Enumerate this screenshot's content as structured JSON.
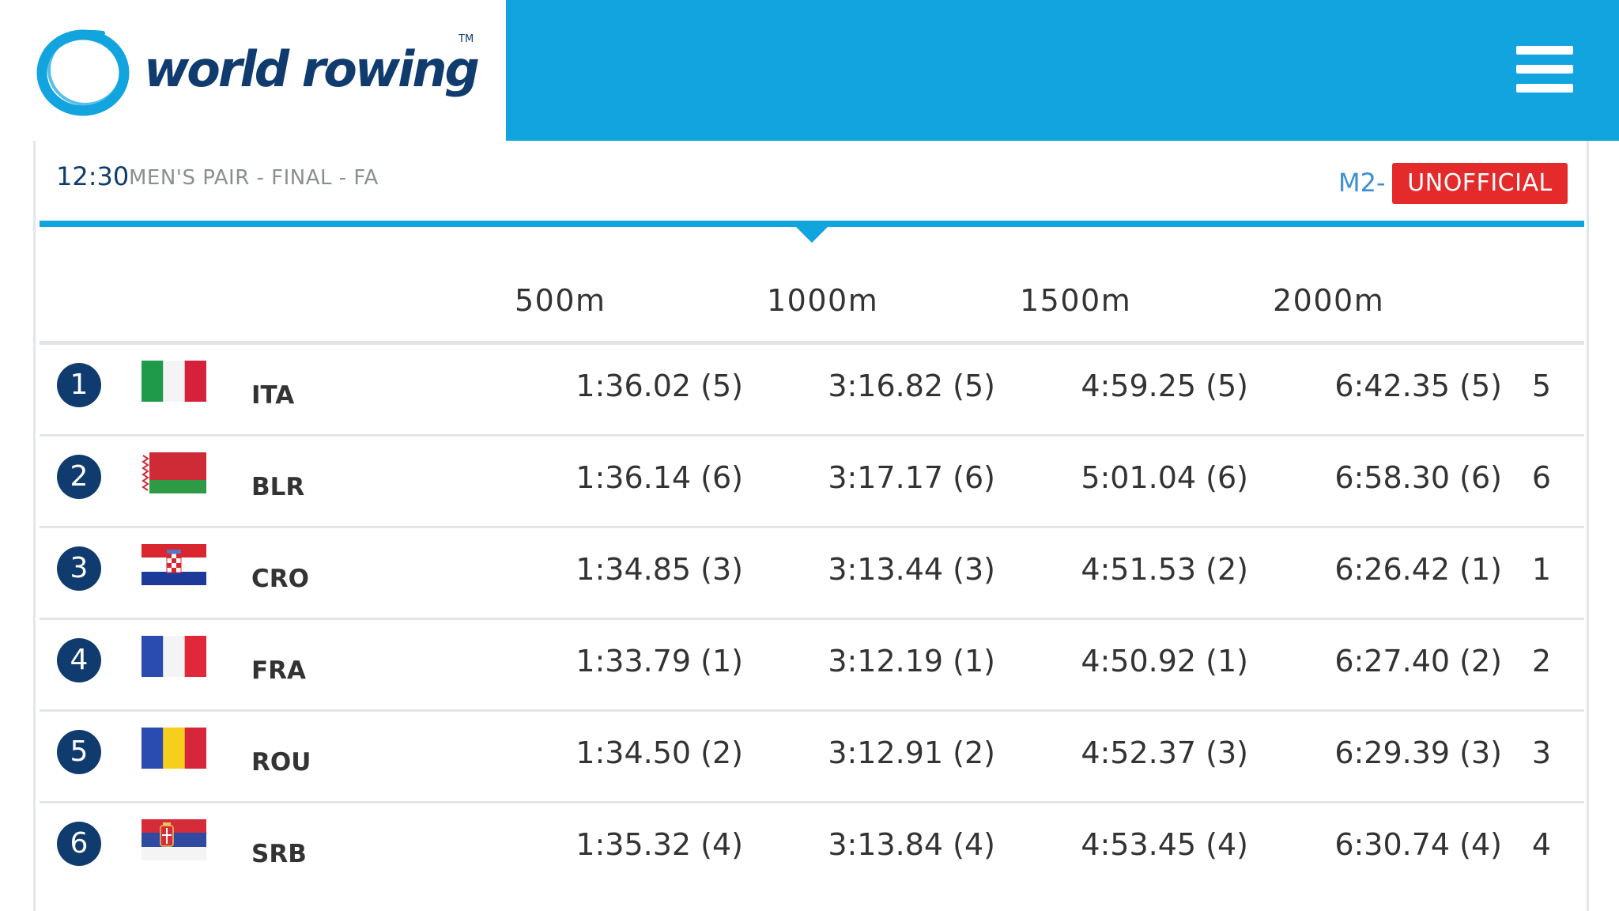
{
  "header": {
    "logo_text": "world rowing",
    "logo_tm": "TM",
    "menu_icon": "hamburger-menu-icon"
  },
  "colors": {
    "header_blue": "#11a4df",
    "brand_navy": "#0f3b6e",
    "badge_red": "#e42a2a",
    "boat_class_blue": "#3b8fd2"
  },
  "race": {
    "time": "12:30",
    "name": "MEN'S PAIR - FINAL - FA",
    "boat_class": "M2-",
    "status": "UNOFFICIAL"
  },
  "table": {
    "columns": [
      "500m",
      "1000m",
      "1500m",
      "2000m"
    ],
    "rows": [
      {
        "lane": "1",
        "country": "ITA",
        "flag": "italy-flag-icon",
        "t500": "1:36.02 (5)",
        "t1000": "3:16.82 (5)",
        "t1500": "4:59.25 (5)",
        "t2000": "6:42.35 (5)",
        "rank": "5"
      },
      {
        "lane": "2",
        "country": "BLR",
        "flag": "belarus-flag-icon",
        "t500": "1:36.14 (6)",
        "t1000": "3:17.17 (6)",
        "t1500": "5:01.04 (6)",
        "t2000": "6:58.30 (6)",
        "rank": "6"
      },
      {
        "lane": "3",
        "country": "CRO",
        "flag": "croatia-flag-icon",
        "t500": "1:34.85 (3)",
        "t1000": "3:13.44 (3)",
        "t1500": "4:51.53 (2)",
        "t2000": "6:26.42 (1)",
        "rank": "1"
      },
      {
        "lane": "4",
        "country": "FRA",
        "flag": "france-flag-icon",
        "t500": "1:33.79 (1)",
        "t1000": "3:12.19 (1)",
        "t1500": "4:50.92 (1)",
        "t2000": "6:27.40 (2)",
        "rank": "2"
      },
      {
        "lane": "5",
        "country": "ROU",
        "flag": "romania-flag-icon",
        "t500": "1:34.50 (2)",
        "t1000": "3:12.91 (2)",
        "t1500": "4:52.37 (3)",
        "t2000": "6:29.39 (3)",
        "rank": "3"
      },
      {
        "lane": "6",
        "country": "SRB",
        "flag": "serbia-flag-icon",
        "t500": "1:35.32 (4)",
        "t1000": "3:13.84 (4)",
        "t1500": "4:53.45 (4)",
        "t2000": "6:30.74 (4)",
        "rank": "4"
      }
    ]
  }
}
